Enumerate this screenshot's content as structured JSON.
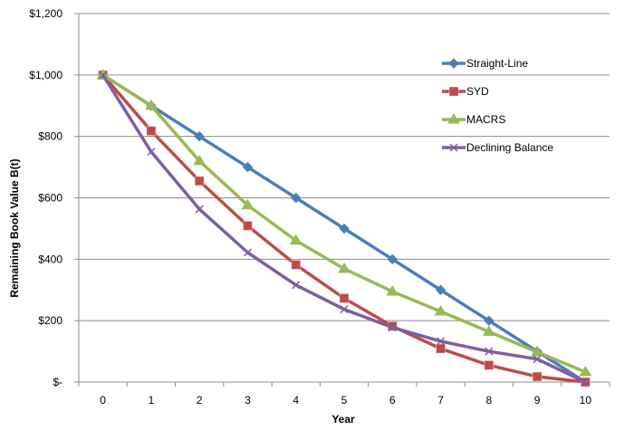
{
  "chart_data": {
    "type": "line",
    "xlabel": "Year",
    "ylabel": "Remaining Book Value B(t)",
    "x": [
      0,
      1,
      2,
      3,
      4,
      5,
      6,
      7,
      8,
      9,
      10
    ],
    "x_ticks": [
      "0",
      "1",
      "2",
      "3",
      "4",
      "5",
      "6",
      "7",
      "8",
      "9",
      "10"
    ],
    "ylim": [
      0,
      1200
    ],
    "y_ticks": [
      0,
      200,
      400,
      600,
      800,
      1000,
      1200
    ],
    "y_tick_labels": [
      "$-",
      "$200",
      "$400",
      "$600",
      "$800",
      "$1,000",
      "$1,200"
    ],
    "grid": "horizontal",
    "legend": "right",
    "series": [
      {
        "name": "Straight-Line",
        "color": "#4a7ebb",
        "marker": "diamond",
        "values": [
          1000,
          900,
          800,
          700,
          600,
          500,
          400,
          300,
          200,
          100,
          0
        ]
      },
      {
        "name": "SYD",
        "color": "#be4b48",
        "marker": "square",
        "values": [
          1000,
          818,
          655,
          509,
          382,
          273,
          182,
          109,
          55,
          18,
          0
        ]
      },
      {
        "name": "MACRS",
        "color": "#98b954",
        "marker": "triangle",
        "values": [
          1000,
          900,
          720,
          576,
          461,
          369,
          295,
          230,
          164,
          98,
          33
        ]
      },
      {
        "name": "Declining Balance",
        "color": "#7d5fa0",
        "marker": "x",
        "values": [
          1000,
          750,
          563,
          422,
          316,
          237,
          178,
          133,
          100,
          75,
          0
        ]
      }
    ]
  }
}
